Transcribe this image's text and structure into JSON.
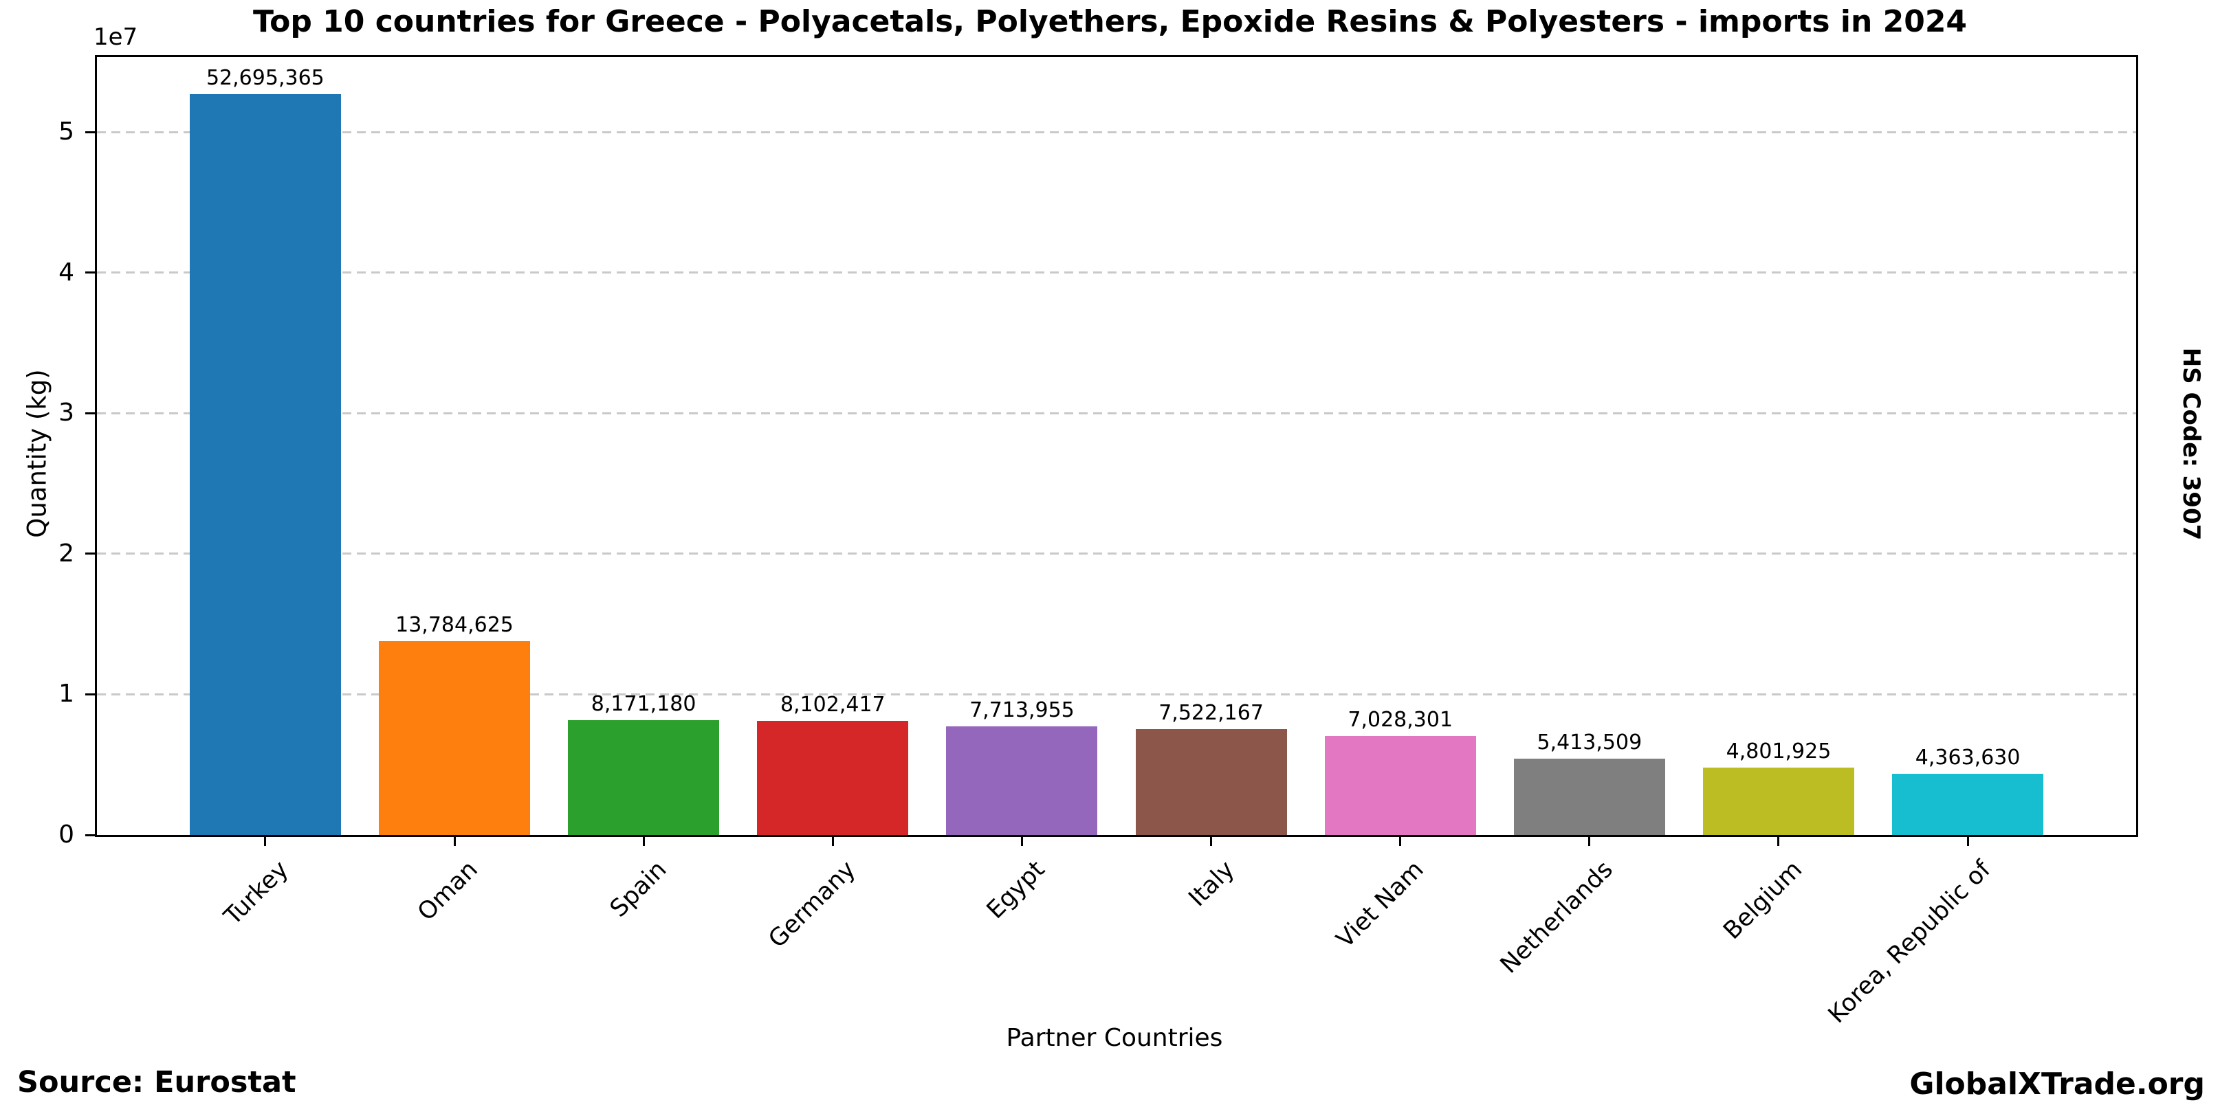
{
  "chart_data": {
    "type": "bar",
    "title": "Top 10 countries for Greece - Polyacetals, Polyethers, Epoxide Resins & Polyesters - imports in 2024",
    "xlabel": "Partner Countries",
    "ylabel": "Quantity (kg)",
    "categories": [
      "Turkey",
      "Oman",
      "Spain",
      "Germany",
      "Egypt",
      "Italy",
      "Viet Nam",
      "Netherlands",
      "Belgium",
      "Korea, Republic of"
    ],
    "values": [
      52695365,
      13784625,
      8171180,
      8102417,
      7713955,
      7522167,
      7028301,
      5413509,
      4801925,
      4363630
    ],
    "value_labels": [
      "52,695,365",
      "13,784,625",
      "8,171,180",
      "8,102,417",
      "7,713,955",
      "7,522,167",
      "7,028,301",
      "5,413,509",
      "4,801,925",
      "4,363,630"
    ],
    "bar_colors": [
      "#1f77b4",
      "#ff7f0e",
      "#2ca02c",
      "#d62728",
      "#9467bd",
      "#8c564b",
      "#e377c2",
      "#7f7f7f",
      "#bcbd22",
      "#17becf"
    ],
    "ylim": [
      0,
      55330133
    ],
    "yticks": {
      "unit": 10000000,
      "values": [
        0,
        1,
        2,
        3,
        4,
        5
      ],
      "labels": [
        "0",
        "1",
        "2",
        "3",
        "4",
        "5"
      ],
      "exponent_label": "1e7"
    },
    "grid": {
      "axis": "y",
      "style": "dashed",
      "color": "#c9c9c9"
    }
  },
  "annotations": {
    "source": "Source: Eurostat",
    "brand": "GlobalXTrade.org",
    "hs_code": "HS Code: 3907"
  }
}
